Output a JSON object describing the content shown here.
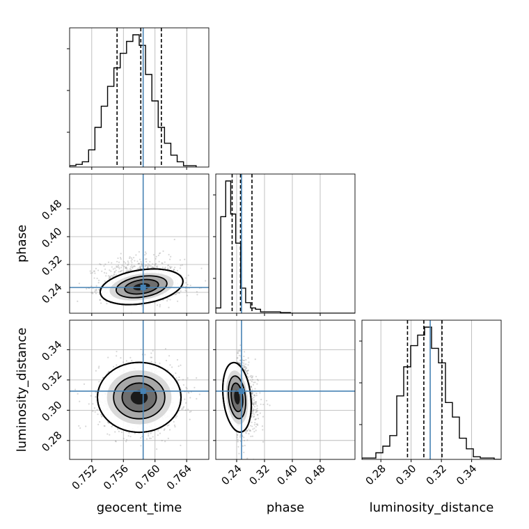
{
  "chart_data": {
    "type": "corner",
    "parameters": [
      {
        "name": "geocent_time",
        "label": "geocent_time",
        "truth": 0.7585,
        "quantiles": [
          0.7552,
          0.7582,
          0.7608
        ],
        "range": [
          0.7492,
          0.7668
        ],
        "ticks": [
          "0.752",
          "0.756",
          "0.760",
          "0.764"
        ]
      },
      {
        "name": "phase",
        "label": "phase",
        "truth": 0.254,
        "quantiles": [
          0.227,
          0.251,
          0.284
        ],
        "range": [
          0.18,
          0.58
        ],
        "ticks": [
          "0.24",
          "0.32",
          "0.40",
          "0.48"
        ]
      },
      {
        "name": "luminosity_distance",
        "label": "luminosity_distance",
        "truth": 0.3126,
        "quantiles": [
          0.2976,
          0.3084,
          0.3204
        ],
        "range": [
          0.2675,
          0.3595
        ],
        "ticks": [
          "0.28",
          "0.30",
          "0.32",
          "0.34"
        ]
      }
    ],
    "histograms": {
      "geocent_time": {
        "bin_start": 0.7492,
        "bin_width": 0.0008,
        "counts": [
          1,
          2,
          4,
          13,
          30,
          46,
          61,
          75,
          86,
          95,
          100,
          92,
          70,
          50,
          30,
          18,
          9,
          4,
          1,
          1
        ]
      },
      "phase": {
        "bin_start": 0.18,
        "bin_width": 0.0143,
        "counts": [
          4,
          73,
          100,
          75,
          53,
          19,
          8,
          4,
          3,
          1,
          1,
          1,
          1,
          0.5,
          0.5,
          0,
          0,
          0,
          0,
          0,
          0,
          0,
          0,
          0,
          0,
          0,
          0,
          0
        ]
      },
      "luminosity_distance": {
        "bin_start": 0.2675,
        "bin_width": 0.0046,
        "counts": [
          1,
          1,
          5,
          10,
          18,
          48,
          70,
          86,
          94,
          100,
          84,
          73,
          43,
          32,
          16,
          8,
          2,
          1,
          1,
          0
        ]
      }
    },
    "pairs": [
      {
        "x": "geocent_time",
        "y": "phase",
        "center": [
          0.7583,
          0.256
        ],
        "sigma": [
          0.0024,
          0.022
        ],
        "rho": -0.35
      },
      {
        "x": "geocent_time",
        "y": "luminosity_distance",
        "center": [
          0.758,
          0.3085
        ],
        "sigma": [
          0.0024,
          0.0105
        ],
        "rho": 0.0
      },
      {
        "x": "phase",
        "y": "luminosity_distance",
        "center": [
          0.241,
          0.3085
        ],
        "sigma": [
          0.018,
          0.0105
        ],
        "rho": -0.25
      }
    ],
    "truth_color": "#4682b4",
    "hist_color": "#000000",
    "grid": true
  }
}
